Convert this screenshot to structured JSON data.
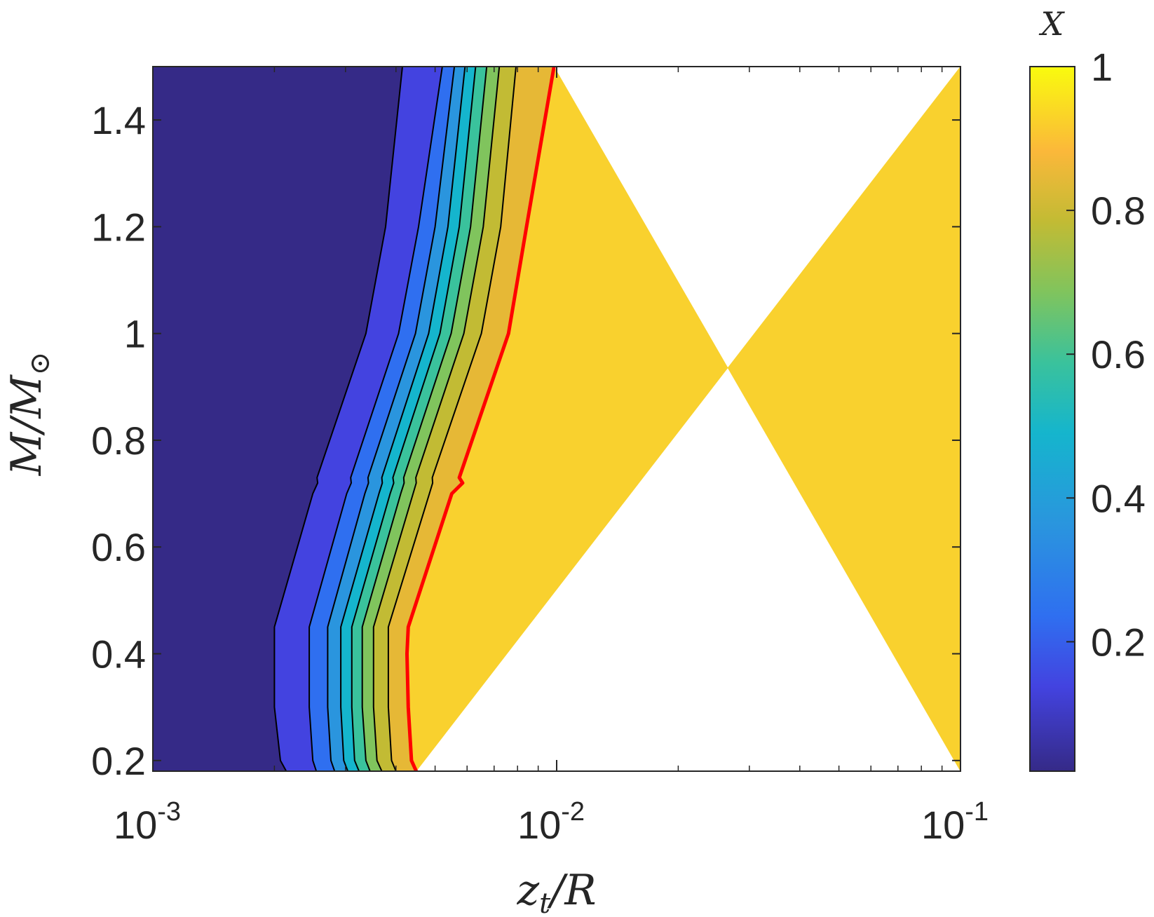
{
  "chart_data": {
    "type": "contour",
    "xlabel": "z_t/R",
    "xlabel_base": "z",
    "xlabel_sub": "t",
    "xlabel_rest": "/R",
    "ylabel": "M/M_⊙",
    "ylabel_main": "M/M",
    "ylabel_sub": "⊙",
    "colorbar_label": "X",
    "xscale": "log",
    "xlim": [
      0.001,
      0.1
    ],
    "ylim": [
      0.18,
      1.5
    ],
    "clim": [
      0.02,
      1.0
    ],
    "x_ticks": [
      {
        "value": 0.001,
        "base": "10",
        "exp": "-3"
      },
      {
        "value": 0.01,
        "base": "10",
        "exp": "-2"
      },
      {
        "value": 0.1,
        "base": "10",
        "exp": "-1"
      }
    ],
    "y_ticks": [
      {
        "value": 0.2,
        "label": "0.2"
      },
      {
        "value": 0.4,
        "label": "0.4"
      },
      {
        "value": 0.6,
        "label": "0.6"
      },
      {
        "value": 0.8,
        "label": "0.8"
      },
      {
        "value": 1.0,
        "label": "1"
      },
      {
        "value": 1.2,
        "label": "1.2"
      },
      {
        "value": 1.4,
        "label": "1.4"
      }
    ],
    "colorbar_ticks": [
      {
        "value": 0.2,
        "label": "0.2"
      },
      {
        "value": 0.4,
        "label": "0.4"
      },
      {
        "value": 0.6,
        "label": "0.6"
      },
      {
        "value": 0.8,
        "label": "0.8"
      },
      {
        "value": 1.0,
        "label": "1"
      }
    ],
    "y_samples": [
      0.18,
      0.2,
      0.3,
      0.4,
      0.45,
      0.7,
      0.72,
      0.73,
      1.0,
      1.2,
      1.5
    ],
    "contour_lines": [
      {
        "level": 0.1,
        "color": "#000000",
        "x": [
          0.00214,
          0.00207,
          0.002,
          0.002,
          0.002,
          0.00249,
          0.00256,
          0.00255,
          0.00337,
          0.00377,
          0.00415
        ]
      },
      {
        "level": 0.2,
        "color": "#000000",
        "x": [
          0.00254,
          0.00249,
          0.00244,
          0.00244,
          0.00244,
          0.00302,
          0.0031,
          0.00309,
          0.00406,
          0.00455,
          0.00521
        ]
      },
      {
        "level": 0.3,
        "color": "#000000",
        "x": [
          0.00282,
          0.00276,
          0.00271,
          0.00271,
          0.00271,
          0.00335,
          0.00342,
          0.00341,
          0.00447,
          0.005,
          0.00558
        ]
      },
      {
        "level": 0.4,
        "color": "#000000",
        "x": [
          0.00304,
          0.00297,
          0.00292,
          0.00292,
          0.00292,
          0.00363,
          0.0037,
          0.00369,
          0.00482,
          0.00538,
          0.00593
        ]
      },
      {
        "level": 0.5,
        "color": "#000000",
        "x": [
          0.00324,
          0.00316,
          0.00311,
          0.00311,
          0.00311,
          0.00387,
          0.00395,
          0.00393,
          0.00514,
          0.00574,
          0.0063
        ]
      },
      {
        "level": 0.6,
        "color": "#000000",
        "x": [
          0.00345,
          0.00337,
          0.0033,
          0.0033,
          0.0033,
          0.00411,
          0.00419,
          0.00418,
          0.00548,
          0.00612,
          0.00671
        ]
      },
      {
        "level": 0.7,
        "color": "#000000",
        "x": [
          0.00369,
          0.00359,
          0.00352,
          0.00352,
          0.00352,
          0.00441,
          0.00449,
          0.00448,
          0.00589,
          0.00658,
          0.00721
        ]
      },
      {
        "level": 0.8,
        "color": "#000000",
        "x": [
          0.004,
          0.0039,
          0.00383,
          0.00383,
          0.00383,
          0.00484,
          0.00493,
          0.00492,
          0.00651,
          0.00727,
          0.00793
        ]
      },
      {
        "level": 0.9,
        "color": "#ff0000",
        "x": [
          0.00449,
          0.00437,
          0.00429,
          0.00426,
          0.00429,
          0.0055,
          0.00585,
          0.00574,
          0.0076,
          0.00842,
          0.00985
        ]
      }
    ],
    "band_colors": [
      "#352a87",
      "#4343e0",
      "#2f6ff0",
      "#2a95de",
      "#15b5cd",
      "#3ac29c",
      "#80c45d",
      "#c2bb34",
      "#e6b836",
      "#f9d12e"
    ]
  }
}
